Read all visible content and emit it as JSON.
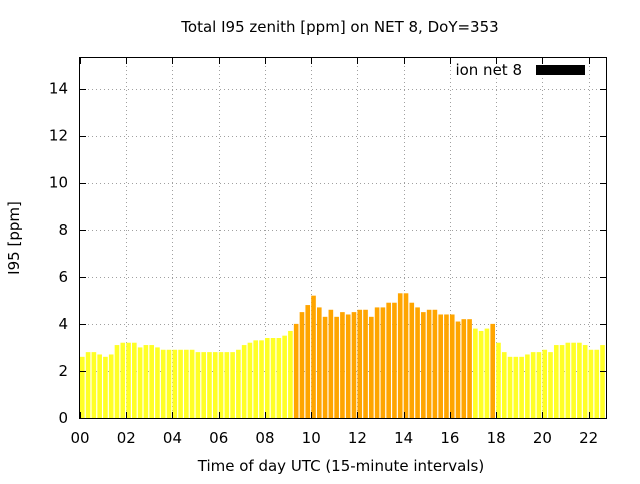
{
  "chart_data": {
    "type": "bar",
    "title": "Total I95 zenith [ppm] on NET 8, DoY=353",
    "xlabel": "Time of day UTC (15-minute intervals)",
    "ylabel": "I95 [ppm]",
    "ylim": [
      0,
      15.3
    ],
    "yticks": [
      0,
      2,
      4,
      6,
      8,
      10,
      12,
      14
    ],
    "xlim": [
      0,
      22.75
    ],
    "xticks": [
      0,
      2,
      4,
      6,
      8,
      10,
      12,
      14,
      16,
      18,
      20,
      22
    ],
    "xtick_labels": [
      "00",
      "02",
      "04",
      "06",
      "08",
      "10",
      "12",
      "14",
      "16",
      "18",
      "20",
      "22"
    ],
    "grid": true,
    "legend": {
      "position": "top-right",
      "entries": [
        {
          "name": "ion net 8",
          "color": "#000000"
        }
      ]
    },
    "bar_width_hours": 0.2,
    "colors": {
      "low": "#ffff26",
      "high": "#ffa500",
      "threshold": 4.0
    },
    "series": [
      {
        "name": "ion net 8",
        "x": [
          0.0,
          0.25,
          0.5,
          0.75,
          1.0,
          1.25,
          1.5,
          1.75,
          2.0,
          2.25,
          2.5,
          2.75,
          3.0,
          3.25,
          3.5,
          3.75,
          4.0,
          4.25,
          4.5,
          4.75,
          5.0,
          5.25,
          5.5,
          5.75,
          6.0,
          6.25,
          6.5,
          6.75,
          7.0,
          7.25,
          7.5,
          7.75,
          8.0,
          8.25,
          8.5,
          8.75,
          9.0,
          9.25,
          9.5,
          9.75,
          10.0,
          10.25,
          10.5,
          10.75,
          11.0,
          11.25,
          11.5,
          11.75,
          12.0,
          12.25,
          12.5,
          12.75,
          13.0,
          13.25,
          13.5,
          13.75,
          14.0,
          14.25,
          14.5,
          14.75,
          15.0,
          15.25,
          15.5,
          15.75,
          16.0,
          16.25,
          16.5,
          16.75,
          17.0,
          17.25,
          17.5,
          17.75,
          18.0,
          18.25,
          18.5,
          18.75,
          19.0,
          19.25,
          19.5,
          19.75,
          20.0,
          20.25,
          20.5,
          20.75,
          21.0,
          21.25,
          21.5,
          21.75,
          22.0,
          22.25,
          22.5
        ],
        "values": [
          2.6,
          2.8,
          2.8,
          2.7,
          2.6,
          2.7,
          3.1,
          3.2,
          3.2,
          3.2,
          3.0,
          3.1,
          3.1,
          3.0,
          2.9,
          2.9,
          2.9,
          2.9,
          2.9,
          2.9,
          2.8,
          2.8,
          2.8,
          2.8,
          2.8,
          2.8,
          2.8,
          2.9,
          3.1,
          3.2,
          3.3,
          3.3,
          3.4,
          3.4,
          3.4,
          3.5,
          3.7,
          4.0,
          4.5,
          4.8,
          5.2,
          4.7,
          4.3,
          4.6,
          4.3,
          4.5,
          4.4,
          4.5,
          4.6,
          4.6,
          4.3,
          4.7,
          4.7,
          4.9,
          4.9,
          5.3,
          5.3,
          4.9,
          4.7,
          4.5,
          4.6,
          4.6,
          4.4,
          4.4,
          4.4,
          4.1,
          4.2,
          4.2,
          3.8,
          3.7,
          3.8,
          4.0,
          3.2,
          2.8,
          2.6,
          2.6,
          2.6,
          2.7,
          2.8,
          2.8,
          2.9,
          2.8,
          3.1,
          3.1,
          3.2,
          3.2,
          3.2,
          3.1,
          2.9,
          2.9,
          3.1
        ]
      }
    ]
  }
}
